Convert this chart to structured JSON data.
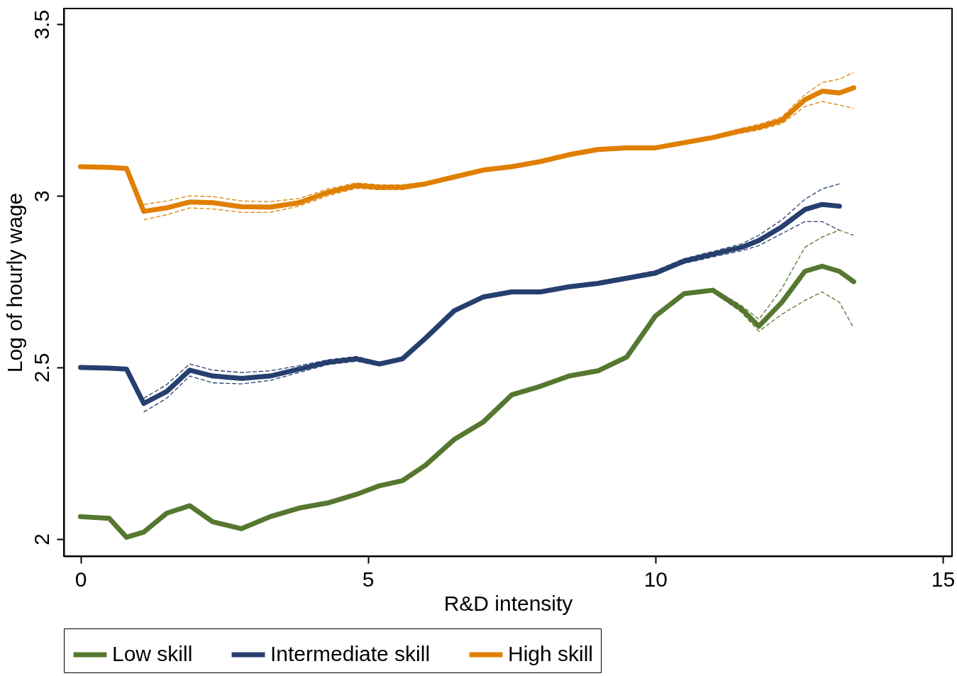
{
  "chart_data": {
    "type": "line",
    "xlabel": "R&D intensity",
    "ylabel": "Log of hourly wage",
    "x": [
      0,
      0.5,
      0.8,
      1.1,
      1.5,
      1.9,
      2.3,
      2.8,
      3.3,
      3.8,
      4.3,
      4.8,
      5.2,
      5.6,
      6.0,
      6.5,
      7.0,
      7.5,
      8.0,
      8.5,
      9.0,
      9.5,
      10.0,
      10.5,
      11.0,
      11.5,
      11.8,
      12.2,
      12.6,
      12.9,
      13.2,
      13.45
    ],
    "series": [
      {
        "name": "Low skill",
        "color": "#56772f",
        "values": [
          2.065,
          2.06,
          2.005,
          2.02,
          2.075,
          2.097,
          2.05,
          2.03,
          2.065,
          2.09,
          2.105,
          2.13,
          2.155,
          2.17,
          2.215,
          2.29,
          2.34,
          2.42,
          2.445,
          2.475,
          2.49,
          2.53,
          2.65,
          2.715,
          2.725,
          2.67,
          2.62,
          2.69,
          2.78,
          2.795,
          2.78,
          2.75
        ]
      },
      {
        "name": "Intermediate skill",
        "color": "#263f6f",
        "values": [
          2.5,
          2.498,
          2.495,
          2.395,
          2.43,
          2.492,
          2.475,
          2.468,
          2.475,
          2.495,
          2.515,
          2.525,
          2.51,
          2.525,
          2.585,
          2.665,
          2.705,
          2.72,
          2.72,
          2.735,
          2.745,
          2.76,
          2.775,
          2.81,
          2.83,
          2.85,
          2.87,
          2.91,
          2.96,
          2.975,
          2.97,
          null
        ]
      },
      {
        "name": "High skill",
        "color": "#e07f00",
        "values": [
          3.085,
          3.083,
          3.08,
          2.955,
          2.965,
          2.982,
          2.98,
          2.968,
          2.967,
          2.98,
          3.01,
          3.03,
          3.025,
          3.025,
          3.035,
          3.055,
          3.075,
          3.085,
          3.1,
          3.12,
          3.135,
          3.14,
          3.14,
          3.155,
          3.17,
          3.19,
          3.2,
          3.22,
          3.28,
          3.305,
          3.3,
          3.315
        ]
      },
      {
        "color": "#56772f",
        "line_style": "dashed",
        "values": [
          null,
          null,
          null,
          null,
          null,
          null,
          null,
          null,
          null,
          null,
          null,
          null,
          null,
          null,
          null,
          null,
          null,
          null,
          null,
          null,
          null,
          null,
          null,
          null,
          2.72,
          2.66,
          2.605,
          2.655,
          2.695,
          2.72,
          2.69,
          2.615
        ]
      },
      {
        "color": "#56772f",
        "line_style": "dashed",
        "values": [
          null,
          null,
          null,
          null,
          null,
          null,
          null,
          null,
          null,
          null,
          null,
          null,
          null,
          null,
          null,
          null,
          null,
          null,
          null,
          null,
          null,
          null,
          null,
          null,
          2.73,
          2.68,
          2.64,
          2.73,
          2.85,
          2.88,
          2.9,
          2.885
        ]
      },
      {
        "color": "#263f6f",
        "line_style": "dashed",
        "values": [
          null,
          null,
          null,
          2.37,
          2.41,
          2.475,
          2.455,
          2.452,
          2.462,
          2.485,
          2.508,
          2.518,
          2.505,
          2.52,
          2.58,
          2.66,
          2.7,
          2.715,
          2.715,
          2.73,
          2.74,
          2.755,
          2.77,
          2.803,
          2.822,
          2.84,
          2.855,
          2.89,
          2.925,
          2.925,
          2.9,
          null
        ]
      },
      {
        "color": "#263f6f",
        "line_style": "dashed",
        "values": [
          null,
          null,
          null,
          2.41,
          2.45,
          2.51,
          2.492,
          2.485,
          2.49,
          2.505,
          2.522,
          2.532,
          2.515,
          2.53,
          2.59,
          2.67,
          2.71,
          2.725,
          2.725,
          2.74,
          2.75,
          2.765,
          2.782,
          2.817,
          2.838,
          2.86,
          2.885,
          2.93,
          2.99,
          3.02,
          3.035,
          null
        ]
      },
      {
        "color": "#e07f00",
        "line_style": "dashed",
        "values": [
          null,
          null,
          null,
          2.93,
          2.945,
          2.965,
          2.962,
          2.952,
          2.952,
          2.97,
          3.0,
          3.022,
          3.018,
          3.018,
          3.03,
          3.05,
          3.07,
          3.08,
          3.095,
          3.115,
          3.13,
          3.135,
          3.135,
          3.15,
          3.165,
          3.183,
          3.192,
          3.21,
          3.26,
          3.275,
          3.265,
          3.255
        ]
      },
      {
        "color": "#e07f00",
        "line_style": "dashed",
        "values": [
          null,
          null,
          null,
          2.975,
          2.985,
          3.0,
          2.998,
          2.985,
          2.983,
          2.992,
          3.02,
          3.038,
          3.032,
          3.032,
          3.04,
          3.06,
          3.08,
          3.09,
          3.105,
          3.125,
          3.14,
          3.145,
          3.145,
          3.16,
          3.175,
          3.197,
          3.208,
          3.23,
          3.295,
          3.33,
          3.34,
          3.36
        ]
      }
    ],
    "xlim": [
      -0.29,
      15.16
    ],
    "xticks": [
      0,
      5,
      10,
      15
    ],
    "ylim": [
      1.95,
      3.546
    ],
    "yticks": [
      2,
      2.5,
      3,
      3.5
    ],
    "grid": false,
    "legend": "bottom"
  }
}
